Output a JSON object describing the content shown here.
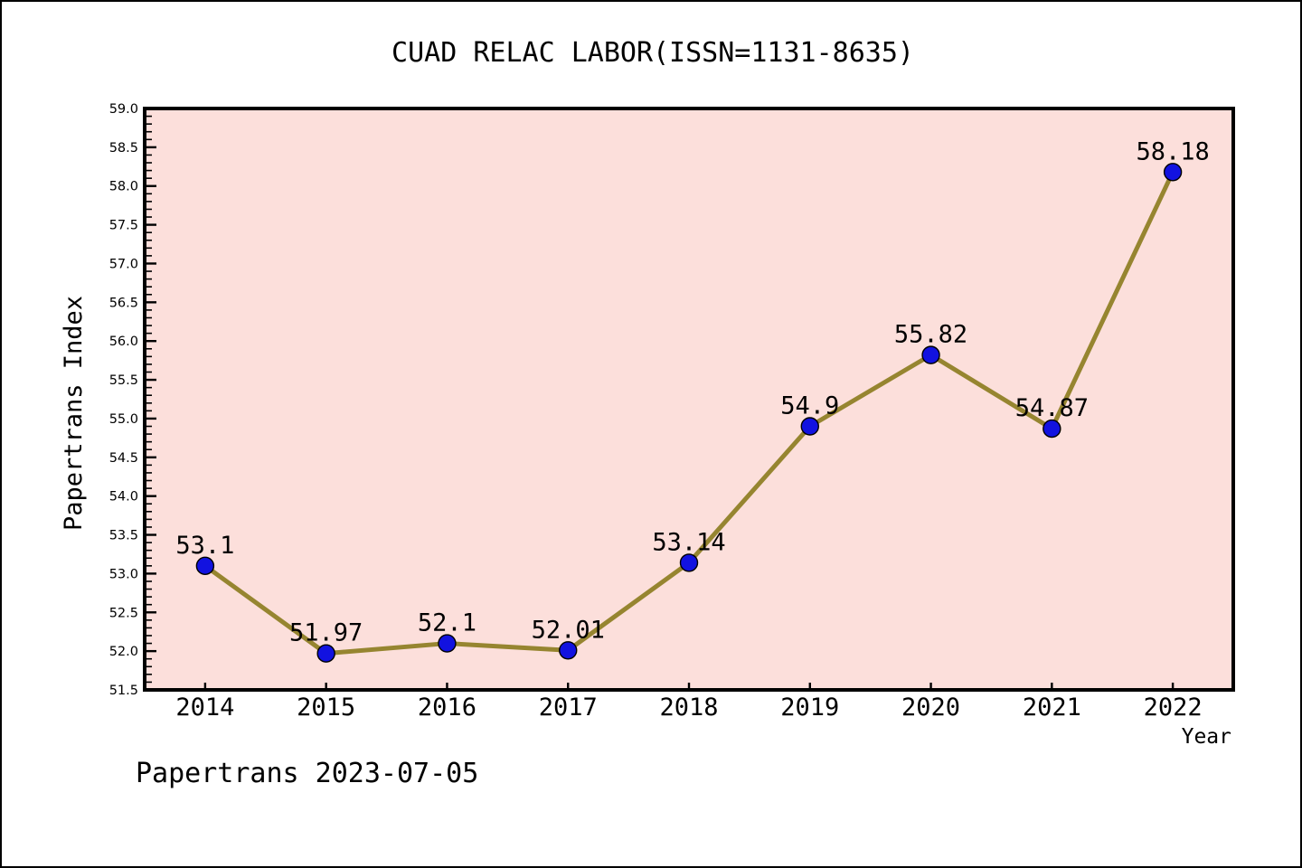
{
  "title": "CUAD RELAC LABOR(ISSN=1131-8635)",
  "footer": "Papertrans 2023-07-05",
  "chart_data": {
    "type": "line",
    "title": "CUAD RELAC LABOR(ISSN=1131-8635)",
    "xlabel": "Year",
    "ylabel": "Papertrans Index",
    "categories": [
      "2014",
      "2015",
      "2016",
      "2017",
      "2018",
      "2019",
      "2020",
      "2021",
      "2022"
    ],
    "values": [
      53.1,
      51.97,
      52.1,
      52.01,
      53.14,
      54.9,
      55.82,
      54.87,
      58.18
    ],
    "point_labels": [
      "53.1",
      "51.97",
      "52.1",
      "52.01",
      "53.14",
      "54.9",
      "55.82",
      "54.87",
      "58.18"
    ],
    "ylim": [
      51.5,
      59.0
    ],
    "ytick_major_step": 0.5,
    "ytick_minor_step": 0.1,
    "grid": "off",
    "legend": "none",
    "colors": {
      "plot_bg": "#FCDFDB",
      "line": "#968530",
      "marker": "#1212E0",
      "marker_edge": "#000000",
      "spine": "#000000",
      "text": "#000000"
    }
  }
}
